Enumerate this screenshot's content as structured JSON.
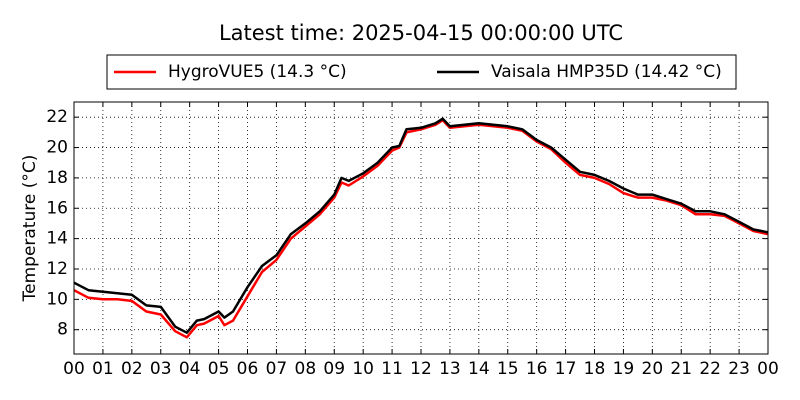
{
  "chart_data": {
    "type": "line",
    "title": "Latest time: 2025-04-15 00:00:00 UTC",
    "y_label": "Temperature (°C)",
    "x": [
      0,
      0.5,
      1,
      1.5,
      2,
      2.5,
      3,
      3.5,
      3.9,
      4.25,
      4.5,
      5,
      5.2,
      5.5,
      6,
      6.5,
      7,
      7.5,
      8,
      8.5,
      9,
      9.25,
      9.5,
      10,
      10.5,
      11,
      11.25,
      11.5,
      12,
      12.5,
      12.75,
      13,
      13.5,
      14,
      14.5,
      15,
      15.5,
      16,
      16.5,
      17,
      17.5,
      18,
      18.5,
      19,
      19.5,
      20,
      20.5,
      21,
      21.5,
      22,
      22.5,
      23,
      23.5,
      24
    ],
    "series": [
      {
        "name": "HygroVUE5 (14.3 °C)",
        "color": "#ff0000",
        "values": [
          10.6,
          10.1,
          10.0,
          10.0,
          9.9,
          9.2,
          9.0,
          7.9,
          7.5,
          8.3,
          8.4,
          8.9,
          8.3,
          8.6,
          10.2,
          11.8,
          12.6,
          14.0,
          14.8,
          15.6,
          16.7,
          17.7,
          17.5,
          18.1,
          18.8,
          19.8,
          20.0,
          21.0,
          21.2,
          21.5,
          21.8,
          21.3,
          21.4,
          21.5,
          21.4,
          21.3,
          21.1,
          20.4,
          19.9,
          19.0,
          18.2,
          18.0,
          17.6,
          17.0,
          16.7,
          16.7,
          16.5,
          16.2,
          15.6,
          15.6,
          15.5,
          15.0,
          14.5,
          14.3
        ]
      },
      {
        "name": "Vaisala HMP35D (14.42 °C)",
        "color": "#000000",
        "values": [
          11.1,
          10.6,
          10.5,
          10.4,
          10.3,
          9.6,
          9.5,
          8.2,
          7.8,
          8.6,
          8.7,
          9.2,
          8.8,
          9.2,
          10.8,
          12.2,
          12.9,
          14.3,
          15.0,
          15.8,
          16.9,
          18.0,
          17.8,
          18.3,
          19.0,
          20.0,
          20.1,
          21.2,
          21.3,
          21.6,
          21.9,
          21.4,
          21.5,
          21.6,
          21.5,
          21.4,
          21.2,
          20.5,
          20.0,
          19.2,
          18.4,
          18.2,
          17.8,
          17.3,
          16.9,
          16.9,
          16.6,
          16.3,
          15.8,
          15.8,
          15.6,
          15.1,
          14.6,
          14.42
        ]
      }
    ],
    "xlim": [
      0,
      24
    ],
    "xticks": [
      {
        "value": 0,
        "label": "00"
      },
      {
        "value": 1,
        "label": "01"
      },
      {
        "value": 2,
        "label": "02"
      },
      {
        "value": 3,
        "label": "03"
      },
      {
        "value": 4,
        "label": "04"
      },
      {
        "value": 5,
        "label": "05"
      },
      {
        "value": 6,
        "label": "06"
      },
      {
        "value": 7,
        "label": "07"
      },
      {
        "value": 8,
        "label": "08"
      },
      {
        "value": 9,
        "label": "09"
      },
      {
        "value": 10,
        "label": "10"
      },
      {
        "value": 11,
        "label": "11"
      },
      {
        "value": 12,
        "label": "12"
      },
      {
        "value": 13,
        "label": "13"
      },
      {
        "value": 14,
        "label": "14"
      },
      {
        "value": 15,
        "label": "15"
      },
      {
        "value": 16,
        "label": "16"
      },
      {
        "value": 17,
        "label": "17"
      },
      {
        "value": 18,
        "label": "18"
      },
      {
        "value": 19,
        "label": "19"
      },
      {
        "value": 20,
        "label": "20"
      },
      {
        "value": 21,
        "label": "21"
      },
      {
        "value": 22,
        "label": "22"
      },
      {
        "value": 23,
        "label": "23"
      },
      {
        "value": 24,
        "label": "00"
      }
    ],
    "ylim": [
      6.4,
      23
    ],
    "yticks": [
      8,
      10,
      12,
      14,
      16,
      18,
      20,
      22
    ],
    "grid": true,
    "legend": "top"
  }
}
